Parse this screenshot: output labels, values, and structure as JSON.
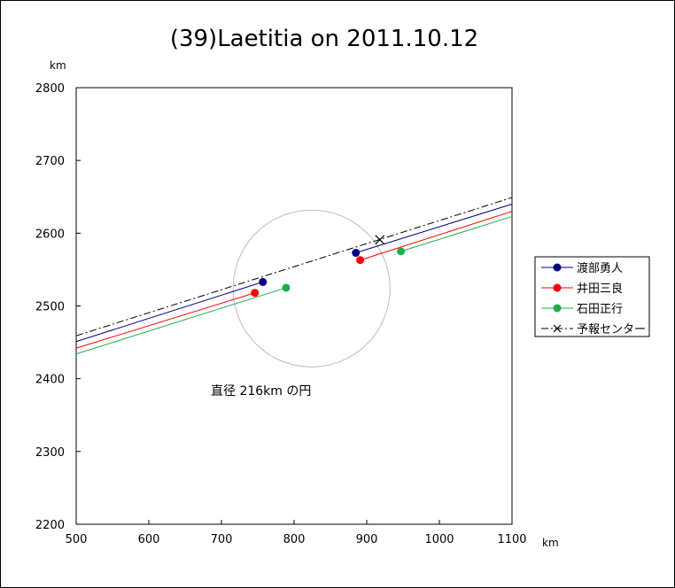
{
  "chart_data": {
    "type": "line",
    "title": "(39)Laetitia on 2011.10.12",
    "xlabel": "km",
    "ylabel": "km",
    "xlim": [
      500,
      1100
    ],
    "ylim": [
      2200,
      2800
    ],
    "x_ticks": [
      500,
      600,
      700,
      800,
      900,
      1000,
      1100
    ],
    "y_ticks": [
      2200,
      2300,
      2400,
      2500,
      2600,
      2700,
      2800
    ],
    "grid": false,
    "legend_position": "right",
    "series": [
      {
        "name": "渡部勇人",
        "color": "#000080",
        "segments": [
          {
            "x": [
              500,
              757
            ],
            "y": [
              2451,
              2533
            ]
          },
          {
            "x": [
              885,
              1100
            ],
            "y": [
              2573,
              2640
            ]
          }
        ],
        "points": [
          {
            "x": 757,
            "y": 2533
          },
          {
            "x": 885,
            "y": 2573
          }
        ]
      },
      {
        "name": "井田三良",
        "color": "#ff0000",
        "segments": [
          {
            "x": [
              500,
              746
            ],
            "y": [
              2442,
              2518
            ]
          },
          {
            "x": [
              891,
              1100
            ],
            "y": [
              2563,
              2630
            ]
          }
        ],
        "points": [
          {
            "x": 746,
            "y": 2518
          },
          {
            "x": 891,
            "y": 2563
          }
        ]
      },
      {
        "name": "石田正行",
        "color": "#1aaf4b",
        "segments": [
          {
            "x": [
              500,
              789
            ],
            "y": [
              2434,
              2525
            ]
          },
          {
            "x": [
              947,
              1100
            ],
            "y": [
              2575,
              2623
            ]
          }
        ],
        "points": [
          {
            "x": 789,
            "y": 2525
          },
          {
            "x": 947,
            "y": 2575
          }
        ]
      },
      {
        "name": "予報センター",
        "color": "#000000",
        "dash": "8,3,2,3",
        "segments": [
          {
            "x": [
              500,
              1100
            ],
            "y": [
              2459,
              2649
            ]
          }
        ],
        "center": {
          "x": 918,
          "y": 2591
        }
      }
    ],
    "circle": {
      "cx": 824,
      "cy": 2524,
      "diameter_km": 216,
      "color": "#bdbdbd"
    },
    "annotation": "直径 216km の円"
  }
}
